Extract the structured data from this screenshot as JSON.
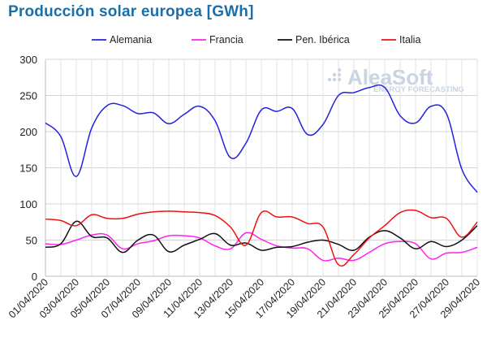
{
  "title": "Producción solar europea [GWh]",
  "watermark": {
    "brand": "AleaSoft",
    "tagline": "ENERGY FORECASTING",
    "color": "#c8d3e3"
  },
  "chart_data": {
    "type": "line",
    "title": "Producción solar europea [GWh]",
    "xlabel": "",
    "ylabel": "",
    "ylim": [
      0,
      300
    ],
    "yticks": [
      0,
      50,
      100,
      150,
      200,
      250,
      300
    ],
    "grid": true,
    "legend_position": "top",
    "x": [
      "01/04/2020",
      "02/04/2020",
      "03/04/2020",
      "04/04/2020",
      "05/04/2020",
      "06/04/2020",
      "07/04/2020",
      "08/04/2020",
      "09/04/2020",
      "10/04/2020",
      "11/04/2020",
      "12/04/2020",
      "13/04/2020",
      "14/04/2020",
      "15/04/2020",
      "16/04/2020",
      "17/04/2020",
      "18/04/2020",
      "19/04/2020",
      "20/04/2020",
      "21/04/2020",
      "22/04/2020",
      "23/04/2020",
      "24/04/2020",
      "25/04/2020",
      "26/04/2020",
      "27/04/2020",
      "28/04/2020",
      "29/04/2020"
    ],
    "xtick_labels": [
      "01/04/2020",
      "03/04/2020",
      "05/04/2020",
      "07/04/2020",
      "09/04/2020",
      "11/04/2020",
      "13/04/2020",
      "15/04/2020",
      "17/04/2020",
      "19/04/2020",
      "21/04/2020",
      "23/04/2020",
      "25/04/2020",
      "27/04/2020",
      "29/04/2020"
    ],
    "series": [
      {
        "name": "Alemania",
        "color": "#2222dd",
        "values": [
          212,
          193,
          138,
          205,
          236,
          236,
          225,
          226,
          211,
          224,
          235,
          215,
          164,
          184,
          230,
          228,
          232,
          196,
          210,
          250,
          254,
          261,
          261,
          222,
          212,
          235,
          225,
          148,
          116
        ]
      },
      {
        "name": "Francia",
        "color": "#ff22ee",
        "values": [
          45,
          44,
          50,
          57,
          57,
          38,
          45,
          49,
          56,
          56,
          53,
          42,
          38,
          60,
          51,
          42,
          39,
          38,
          22,
          25,
          22,
          33,
          45,
          48,
          45,
          24,
          32,
          33,
          40
        ]
      },
      {
        "name": "Pen. Ibérica",
        "color": "#111111",
        "values": [
          40,
          45,
          76,
          55,
          53,
          33,
          50,
          57,
          34,
          43,
          51,
          59,
          43,
          46,
          36,
          40,
          41,
          47,
          50,
          44,
          36,
          54,
          63,
          53,
          38,
          48,
          41,
          50,
          70
        ]
      },
      {
        "name": "Italia",
        "color": "#ee1111",
        "values": [
          79,
          77,
          70,
          85,
          80,
          80,
          86,
          89,
          90,
          89,
          88,
          84,
          68,
          43,
          88,
          82,
          82,
          73,
          68,
          16,
          30,
          53,
          70,
          88,
          91,
          81,
          80,
          54,
          75
        ]
      }
    ]
  }
}
